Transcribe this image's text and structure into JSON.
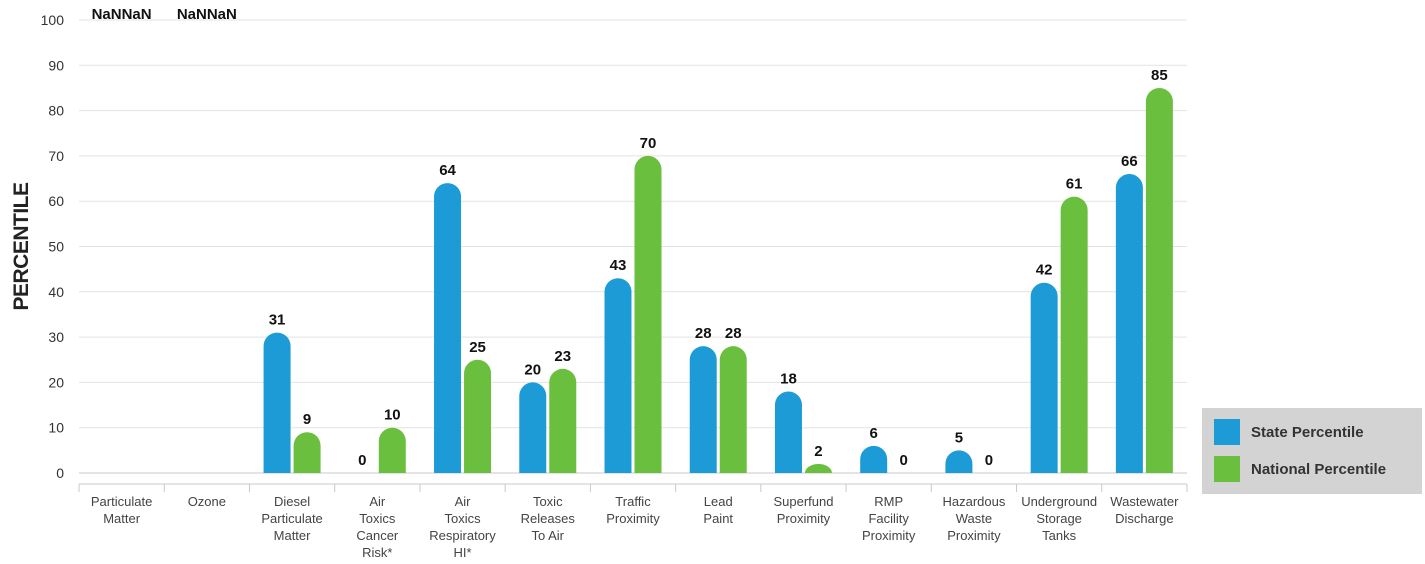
{
  "chart_data": {
    "type": "bar",
    "ylabel": "PERCENTILE",
    "xlabel": "",
    "ylim": [
      0,
      100
    ],
    "yticks": [
      0,
      10,
      20,
      30,
      40,
      50,
      60,
      70,
      80,
      90,
      100
    ],
    "grid": true,
    "legend_position": "bottom-right",
    "categories": [
      [
        "Particulate",
        "Matter"
      ],
      [
        "Ozone"
      ],
      [
        "Diesel",
        "Particulate",
        "Matter"
      ],
      [
        "Air",
        "Toxics",
        "Cancer",
        "Risk*"
      ],
      [
        "Air",
        "Toxics",
        "Respiratory",
        "HI*"
      ],
      [
        "Toxic",
        "Releases",
        "To Air"
      ],
      [
        "Traffic",
        "Proximity"
      ],
      [
        "Lead",
        "Paint"
      ],
      [
        "Superfund",
        "Proximity"
      ],
      [
        "RMP",
        "Facility",
        "Proximity"
      ],
      [
        "Hazardous",
        "Waste",
        "Proximity"
      ],
      [
        "Underground",
        "Storage",
        "Tanks"
      ],
      [
        "Wastewater",
        "Discharge"
      ]
    ],
    "series": [
      {
        "name": "State Percentile",
        "color": "#1d9bd7",
        "values": [
          null,
          null,
          31,
          0,
          64,
          20,
          43,
          28,
          18,
          6,
          5,
          42,
          66
        ],
        "labels": [
          "NaN",
          "NaN",
          "31",
          "0",
          "64",
          "20",
          "43",
          "28",
          "18",
          "6",
          "5",
          "42",
          "66"
        ]
      },
      {
        "name": "National Percentile",
        "color": "#6abf3f",
        "values": [
          null,
          null,
          9,
          10,
          25,
          23,
          70,
          28,
          2,
          0,
          0,
          61,
          85
        ],
        "labels": [
          "NaN",
          "NaN",
          "9",
          "10",
          "25",
          "23",
          "70",
          "28",
          "2",
          "0",
          "0",
          "61",
          "85"
        ]
      }
    ]
  }
}
